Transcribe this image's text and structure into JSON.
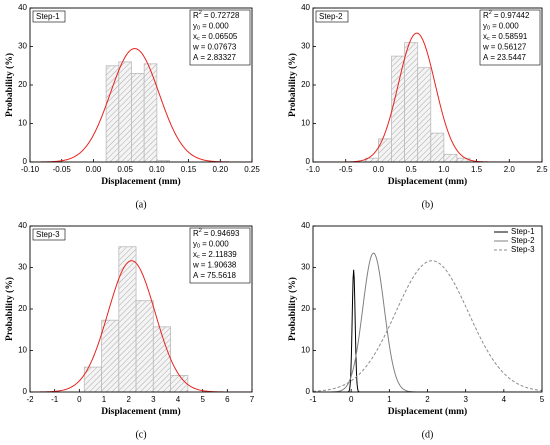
{
  "chart_data": [
    {
      "type": "histogram",
      "label": "Step-1",
      "caption": "(a)",
      "xlabel": "Displacement (mm)",
      "ylabel": "Probability (%)",
      "bins": [
        0.02,
        0.04,
        0.06,
        0.08,
        0.1,
        0.12
      ],
      "counts": [
        25,
        26,
        23,
        25.5,
        0.4
      ],
      "color": "#bbbbbb",
      "xlim": [
        -0.1,
        0.25
      ],
      "xticks": [
        {
          "value": -0.1,
          "label": "-0.10"
        },
        -0.05,
        {
          "value": 0,
          "label": "0.00"
        },
        0.05,
        {
          "value": 0.1,
          "label": "0.10"
        },
        0.15,
        {
          "value": 0.2,
          "label": "0.20"
        },
        0.25
      ],
      "ylim": [
        0,
        40
      ],
      "yticks": [
        0,
        10,
        20,
        30,
        40
      ],
      "fit": {
        "color": "#e8231e",
        "params": [
          {
            "symbol": "R",
            "script": "2",
            "pos": "sup",
            "op": "=",
            "value": 0.72728
          },
          {
            "symbol": "y",
            "script": "0",
            "pos": "sub",
            "op": "=",
            "value": 0,
            "label": "0.000"
          },
          {
            "symbol": "x",
            "script": "c",
            "pos": "sub",
            "op": "=",
            "value": 0.06505
          },
          {
            "symbol": "w",
            "op": "=",
            "value": 0.07673
          },
          {
            "symbol": "A",
            "op": "=",
            "value": 2.83327
          }
        ]
      }
    },
    {
      "type": "histogram",
      "label": "Step-2",
      "caption": "(b)",
      "xlabel": "Displacement (mm)",
      "ylabel": "Probability (%)",
      "bins": [
        -0.2,
        0,
        0.2,
        0.4,
        0.6,
        0.8,
        1.0,
        1.2,
        1.4
      ],
      "counts": [
        1,
        6,
        27.5,
        31,
        24.5,
        7.5,
        2,
        1
      ],
      "color": "#bbbbbb",
      "xlim": [
        -1.0,
        2.5
      ],
      "xticks": [
        {
          "value": -1.0,
          "label": "-1.0"
        },
        -0.5,
        {
          "value": 0,
          "label": "0.0"
        },
        0.5,
        {
          "value": 1.0,
          "label": "1.0"
        },
        1.5,
        {
          "value": 2.0,
          "label": "2.0"
        },
        2.5
      ],
      "ylim": [
        0,
        40
      ],
      "yticks": [
        0,
        10,
        20,
        30,
        40
      ],
      "fit": {
        "color": "#e8231e",
        "params": [
          {
            "symbol": "R",
            "script": "2",
            "pos": "sup",
            "op": "=",
            "value": 0.97442
          },
          {
            "symbol": "y",
            "script": "0",
            "pos": "sub",
            "op": "=",
            "value": 0,
            "label": "0.000"
          },
          {
            "symbol": "x",
            "script": "c",
            "pos": "sub",
            "op": "=",
            "value": 0.58591
          },
          {
            "symbol": "w",
            "op": "=",
            "value": 0.56127
          },
          {
            "symbol": "A",
            "op": "=",
            "value": 23.5447
          }
        ]
      }
    },
    {
      "type": "histogram",
      "label": "Step-3",
      "caption": "(c)",
      "xlabel": "Displacement (mm)",
      "ylabel": "Probability (%)",
      "bins": [
        0.2,
        0.9,
        1.6,
        2.3,
        3.0,
        3.7,
        4.4
      ],
      "counts": [
        6,
        17.3,
        35,
        22,
        15.7,
        4
      ],
      "color": "#bbbbbb",
      "xlim": [
        -2,
        7
      ],
      "xticks": [
        -2,
        -1,
        0,
        1,
        2,
        3,
        4,
        5,
        6,
        7
      ],
      "ylim": [
        0,
        40
      ],
      "yticks": [
        0,
        10,
        20,
        30,
        40
      ],
      "fit": {
        "color": "#e8231e",
        "params": [
          {
            "symbol": "R",
            "script": "2",
            "pos": "sup",
            "op": "=",
            "value": 0.94693
          },
          {
            "symbol": "y",
            "script": "0",
            "pos": "sub",
            "op": "=",
            "value": 0,
            "label": "0.000"
          },
          {
            "symbol": "x",
            "script": "c",
            "pos": "sub",
            "op": "=",
            "value": 2.11839
          },
          {
            "symbol": "w",
            "op": "=",
            "value": 1.90638
          },
          {
            "symbol": "A",
            "op": "=",
            "value": 75.5618
          }
        ]
      }
    },
    {
      "type": "gaussian",
      "caption": "(d)",
      "xlabel": "Displacement (mm)",
      "ylabel": "Probability (%)",
      "xlim": [
        -1,
        5
      ],
      "xticks": [
        -1,
        0,
        1,
        2,
        3,
        4,
        5
      ],
      "ylim": [
        0,
        40
      ],
      "yticks": [
        0,
        10,
        20,
        30,
        40
      ],
      "legend": "upper right",
      "series": [
        {
          "name": "Step-1",
          "color": "#000000",
          "dash": false,
          "y0": 0,
          "xc": 0.06505,
          "w": 0.07673,
          "A": 2.83327
        },
        {
          "name": "Step-2",
          "color": "#808080",
          "dash": false,
          "y0": 0,
          "xc": 0.58591,
          "w": 0.56127,
          "A": 23.5447
        },
        {
          "name": "Step-3",
          "color": "#8c8c8c",
          "dash": true,
          "y0": 0,
          "xc": 2.11839,
          "w": 1.90638,
          "A": 75.5618
        }
      ]
    }
  ]
}
